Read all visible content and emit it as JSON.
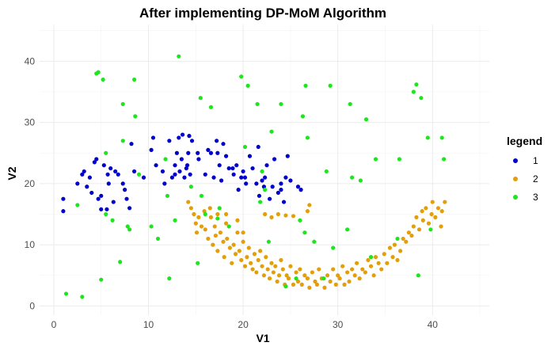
{
  "chart_data": {
    "type": "scatter",
    "title": "After implementing DP-MoM Algorithm",
    "xlabel": "V1",
    "ylabel": "V2",
    "xlim": [
      -1.5,
      46
    ],
    "ylim": [
      -1.5,
      46
    ],
    "x_ticks": [
      0,
      10,
      20,
      30,
      40
    ],
    "y_ticks": [
      0,
      10,
      20,
      30,
      40
    ],
    "grid": true,
    "legend": {
      "title": "legend",
      "position": "right"
    },
    "series": [
      {
        "name": "1",
        "color": "#0000cd",
        "points": [
          [
            1,
            17.5
          ],
          [
            1,
            15.5
          ],
          [
            2.5,
            20
          ],
          [
            3,
            21.5
          ],
          [
            3.2,
            22
          ],
          [
            3.5,
            19.5
          ],
          [
            3.8,
            21
          ],
          [
            4,
            18.5
          ],
          [
            4.3,
            23.5
          ],
          [
            4.5,
            24
          ],
          [
            4.7,
            17.5
          ],
          [
            5,
            18
          ],
          [
            5,
            15.8
          ],
          [
            5.3,
            23
          ],
          [
            5.6,
            15.8
          ],
          [
            5.7,
            21.5
          ],
          [
            5.8,
            20
          ],
          [
            6,
            22.5
          ],
          [
            6.3,
            17
          ],
          [
            6.5,
            22
          ],
          [
            6.8,
            21.5
          ],
          [
            7.3,
            20
          ],
          [
            7.5,
            19
          ],
          [
            7.7,
            17.5
          ],
          [
            8,
            16
          ],
          [
            8.2,
            26.5
          ],
          [
            8.5,
            22
          ],
          [
            9.5,
            21
          ],
          [
            10.3,
            25.5
          ],
          [
            10.5,
            27.5
          ],
          [
            10.8,
            23
          ],
          [
            11.5,
            22
          ],
          [
            11.7,
            20
          ],
          [
            12.2,
            27
          ],
          [
            12.5,
            21
          ],
          [
            12.8,
            21.5
          ],
          [
            12.8,
            23
          ],
          [
            13,
            25
          ],
          [
            13.2,
            27.5
          ],
          [
            13.3,
            22
          ],
          [
            13.5,
            24
          ],
          [
            13.6,
            28
          ],
          [
            13.8,
            21
          ],
          [
            14,
            22.5
          ],
          [
            14.1,
            23
          ],
          [
            14.2,
            25
          ],
          [
            14.3,
            27.8
          ],
          [
            14.4,
            21.5
          ],
          [
            14.6,
            27
          ],
          [
            15.2,
            25
          ],
          [
            15.3,
            24
          ],
          [
            16,
            21.5
          ],
          [
            16.3,
            25.5
          ],
          [
            16.6,
            25
          ],
          [
            16.9,
            21
          ],
          [
            17.2,
            27
          ],
          [
            17.3,
            25
          ],
          [
            17.5,
            23
          ],
          [
            17.7,
            20.5
          ],
          [
            17.9,
            26.5
          ],
          [
            18.2,
            24.5
          ],
          [
            18.5,
            22.5
          ],
          [
            18.9,
            22.5
          ],
          [
            19,
            21.5
          ],
          [
            19.3,
            23
          ],
          [
            19.5,
            19
          ],
          [
            19.8,
            21
          ],
          [
            20,
            22
          ],
          [
            20.2,
            21
          ],
          [
            20.3,
            20
          ],
          [
            20.7,
            24.5
          ],
          [
            21,
            22.5
          ],
          [
            21.4,
            20
          ],
          [
            21.6,
            26
          ],
          [
            21.7,
            18
          ],
          [
            22,
            20.5
          ],
          [
            22.2,
            19.5
          ],
          [
            22.3,
            21
          ],
          [
            22.5,
            23
          ],
          [
            22.8,
            17.5
          ],
          [
            23.1,
            19.5
          ],
          [
            23.3,
            24
          ],
          [
            23.7,
            18.5
          ],
          [
            24,
            19
          ],
          [
            24,
            20
          ],
          [
            24.3,
            17
          ],
          [
            24.5,
            21
          ],
          [
            24.7,
            24.5
          ],
          [
            25,
            20.5
          ],
          [
            25.8,
            19.5
          ],
          [
            26.1,
            19
          ]
        ]
      },
      {
        "name": "2",
        "color": "#e29f09",
        "points": [
          [
            14.2,
            17
          ],
          [
            14.5,
            16
          ],
          [
            14.8,
            15
          ],
          [
            15,
            13.5
          ],
          [
            15.1,
            12
          ],
          [
            15.3,
            14.5
          ],
          [
            15.6,
            13
          ],
          [
            15.9,
            15.5
          ],
          [
            16,
            12.5
          ],
          [
            16.3,
            11
          ],
          [
            16.5,
            16
          ],
          [
            16.6,
            14.5
          ],
          [
            16.8,
            10
          ],
          [
            17,
            13
          ],
          [
            17.1,
            11.5
          ],
          [
            17.3,
            15
          ],
          [
            17.3,
            9
          ],
          [
            17.6,
            12
          ],
          [
            17.9,
            10.5
          ],
          [
            18,
            8
          ],
          [
            18.2,
            13.5
          ],
          [
            18.3,
            11
          ],
          [
            18.6,
            9.5
          ],
          [
            18.8,
            7
          ],
          [
            19,
            10
          ],
          [
            19.2,
            8.5
          ],
          [
            19.4,
            12
          ],
          [
            19.6,
            9
          ],
          [
            19.8,
            7.5
          ],
          [
            20,
            10.5
          ],
          [
            20.2,
            6.5
          ],
          [
            20.4,
            8
          ],
          [
            20.6,
            9.5
          ],
          [
            20.8,
            7
          ],
          [
            21,
            6
          ],
          [
            21.2,
            8.5
          ],
          [
            21.4,
            5.5
          ],
          [
            21.6,
            7.5
          ],
          [
            21.8,
            9
          ],
          [
            22,
            6.5
          ],
          [
            22.2,
            5
          ],
          [
            22.4,
            8
          ],
          [
            22.6,
            6
          ],
          [
            22.8,
            4.5
          ],
          [
            23,
            7
          ],
          [
            23.2,
            5.5
          ],
          [
            23.4,
            6.5
          ],
          [
            23.6,
            4
          ],
          [
            23.8,
            5
          ],
          [
            24,
            7.5
          ],
          [
            24.2,
            6
          ],
          [
            24.4,
            3.5
          ],
          [
            24.6,
            5
          ],
          [
            24.8,
            4.5
          ],
          [
            25,
            6.5
          ],
          [
            25.3,
            3.5
          ],
          [
            25.6,
            5.5
          ],
          [
            25.8,
            4
          ],
          [
            26,
            6
          ],
          [
            26.2,
            3.5
          ],
          [
            26.5,
            5
          ],
          [
            26.8,
            4.5
          ],
          [
            27,
            3
          ],
          [
            27.3,
            5.5
          ],
          [
            27.6,
            4
          ],
          [
            27.8,
            3.5
          ],
          [
            28,
            6
          ],
          [
            28.3,
            4.5
          ],
          [
            28.6,
            3
          ],
          [
            28.9,
            5
          ],
          [
            29.2,
            4
          ],
          [
            29.5,
            6
          ],
          [
            29.8,
            3.5
          ],
          [
            30,
            5
          ],
          [
            30.2,
            4.5
          ],
          [
            30.5,
            6.5
          ],
          [
            30.7,
            3.5
          ],
          [
            31,
            5.5
          ],
          [
            31.2,
            4
          ],
          [
            31.5,
            6
          ],
          [
            31.8,
            5
          ],
          [
            32,
            7
          ],
          [
            32.3,
            4.5
          ],
          [
            32.6,
            6
          ],
          [
            32.9,
            5.5
          ],
          [
            33.2,
            7.5
          ],
          [
            33.5,
            6.5
          ],
          [
            33.8,
            5
          ],
          [
            34,
            8
          ],
          [
            34.3,
            7
          ],
          [
            34.6,
            6
          ],
          [
            34.9,
            8.5
          ],
          [
            35.2,
            7
          ],
          [
            35.5,
            9.5
          ],
          [
            35.8,
            8
          ],
          [
            36,
            10
          ],
          [
            36.3,
            7.5
          ],
          [
            36.6,
            9
          ],
          [
            36.9,
            11
          ],
          [
            37.2,
            10.5
          ],
          [
            37.5,
            12
          ],
          [
            37.8,
            11.5
          ],
          [
            38,
            13
          ],
          [
            38.3,
            14.5
          ],
          [
            38.6,
            12.5
          ],
          [
            38.9,
            15.5
          ],
          [
            39,
            14
          ],
          [
            39.3,
            16
          ],
          [
            39.6,
            13.5
          ],
          [
            39.9,
            15
          ],
          [
            40,
            17
          ],
          [
            40.3,
            14.5
          ],
          [
            40.6,
            16
          ],
          [
            40.9,
            13
          ],
          [
            41,
            15.5
          ],
          [
            41.3,
            17
          ],
          [
            26.8,
            15.5
          ],
          [
            22.3,
            15
          ],
          [
            23,
            14.5
          ],
          [
            23.7,
            15
          ],
          [
            24.5,
            14.8
          ],
          [
            25.3,
            14.7
          ],
          [
            27,
            16.5
          ],
          [
            20,
            12
          ],
          [
            19.4,
            14
          ],
          [
            18.2,
            15
          ]
        ]
      },
      {
        "name": "3",
        "color": "#1ee61e",
        "points": [
          [
            1.3,
            2
          ],
          [
            3,
            1.5
          ],
          [
            2.5,
            16.5
          ],
          [
            4.5,
            38
          ],
          [
            4.7,
            38.2
          ],
          [
            5.2,
            37
          ],
          [
            5.5,
            25
          ],
          [
            5.5,
            15
          ],
          [
            5,
            4.3
          ],
          [
            6.2,
            14
          ],
          [
            7,
            7.2
          ],
          [
            7.3,
            33
          ],
          [
            7.3,
            27
          ],
          [
            7.8,
            13
          ],
          [
            8,
            12.5
          ],
          [
            8.5,
            37
          ],
          [
            8.6,
            31
          ],
          [
            9,
            21.5
          ],
          [
            10.3,
            13
          ],
          [
            11,
            11
          ],
          [
            11.8,
            24
          ],
          [
            12,
            18
          ],
          [
            12.2,
            4.5
          ],
          [
            12.8,
            14
          ],
          [
            13.2,
            40.8
          ],
          [
            14.5,
            19.5
          ],
          [
            15.2,
            7
          ],
          [
            15.5,
            34
          ],
          [
            15.6,
            18
          ],
          [
            16,
            15
          ],
          [
            16.6,
            32.5
          ],
          [
            17.5,
            16
          ],
          [
            17.3,
            14.3
          ],
          [
            18.5,
            13
          ],
          [
            19.8,
            37.5
          ],
          [
            20.2,
            26
          ],
          [
            20.5,
            36
          ],
          [
            21.5,
            33
          ],
          [
            21.8,
            17
          ],
          [
            22,
            22
          ],
          [
            22.3,
            19
          ],
          [
            22.7,
            10.5
          ],
          [
            23,
            28.5
          ],
          [
            24,
            33
          ],
          [
            24.5,
            3.2
          ],
          [
            25.6,
            4.5
          ],
          [
            26,
            14
          ],
          [
            26.3,
            31
          ],
          [
            26.6,
            36
          ],
          [
            26.8,
            27.5
          ],
          [
            26.5,
            12
          ],
          [
            27.5,
            10.5
          ],
          [
            28.5,
            4.5
          ],
          [
            28.8,
            22
          ],
          [
            29.2,
            36
          ],
          [
            29.5,
            9.5
          ],
          [
            31,
            12.5
          ],
          [
            31.3,
            33
          ],
          [
            31.5,
            21
          ],
          [
            32.4,
            20.5
          ],
          [
            33,
            30.5
          ],
          [
            33.5,
            8
          ],
          [
            34,
            24
          ],
          [
            36.5,
            24
          ],
          [
            36.3,
            11
          ],
          [
            38,
            35
          ],
          [
            38.3,
            36.2
          ],
          [
            38.8,
            34
          ],
          [
            38.5,
            5
          ],
          [
            39.5,
            27.5
          ],
          [
            39.8,
            12.5
          ],
          [
            41,
            27.5
          ],
          [
            41.2,
            24
          ]
        ]
      }
    ]
  }
}
